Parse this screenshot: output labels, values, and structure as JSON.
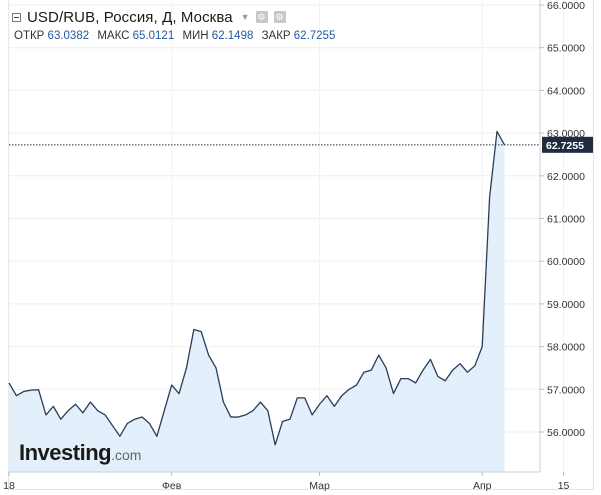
{
  "header": {
    "title": "USD/RUB, Россия, Д, Москва",
    "ohlc": [
      {
        "label": "ОТКР",
        "value": "63.0382"
      },
      {
        "label": "МАКС",
        "value": "65.0121"
      },
      {
        "label": "МИН",
        "value": "62.1498"
      },
      {
        "label": "ЗАКР",
        "value": "62.7255"
      }
    ]
  },
  "watermark": {
    "brand": "Investing",
    "domain": ".com"
  },
  "colors": {
    "line": "#2b3c57",
    "fill": "#e3effb",
    "accent_label_bg": "#1f2d40",
    "text": "#333333"
  },
  "chart_data": {
    "type": "area",
    "title": "USD/RUB, Россия, Д, Москва",
    "xlabel": "",
    "ylabel": "",
    "ylim": [
      55.2,
      66.0
    ],
    "y_ticks": [
      "56.0000",
      "57.0000",
      "58.0000",
      "59.0000",
      "60.0000",
      "61.0000",
      "62.0000",
      "63.0000",
      "64.0000",
      "65.0000",
      "66.0000"
    ],
    "x_tick_labels": [
      {
        "label": "18",
        "index": 0
      },
      {
        "label": "Фев",
        "index": 22
      },
      {
        "label": "Мар",
        "index": 42
      },
      {
        "label": "Апр",
        "index": 64
      },
      {
        "label": "15",
        "index": 75
      }
    ],
    "last_value_label": "62.7255",
    "grid": true,
    "series": [
      {
        "values": [
          57.15,
          56.85,
          56.95,
          56.98,
          56.99,
          56.4,
          56.6,
          56.3,
          56.5,
          56.65,
          56.45,
          56.7,
          56.5,
          56.4,
          56.15,
          55.9,
          56.2,
          56.3,
          56.35,
          56.2,
          55.9,
          56.5,
          57.1,
          56.9,
          57.5,
          58.4,
          58.35,
          57.8,
          57.5,
          56.7,
          56.35,
          56.35,
          56.4,
          56.5,
          56.7,
          56.5,
          55.7,
          56.25,
          56.3,
          56.8,
          56.8,
          56.4,
          56.65,
          56.85,
          56.6,
          56.85,
          57.0,
          57.1,
          57.4,
          57.45,
          57.8,
          57.5,
          56.9,
          57.25,
          57.25,
          57.15,
          57.45,
          57.7,
          57.3,
          57.2,
          57.45,
          57.6,
          57.4,
          57.55,
          58.0,
          61.5,
          63.04,
          62.73
        ]
      }
    ]
  }
}
